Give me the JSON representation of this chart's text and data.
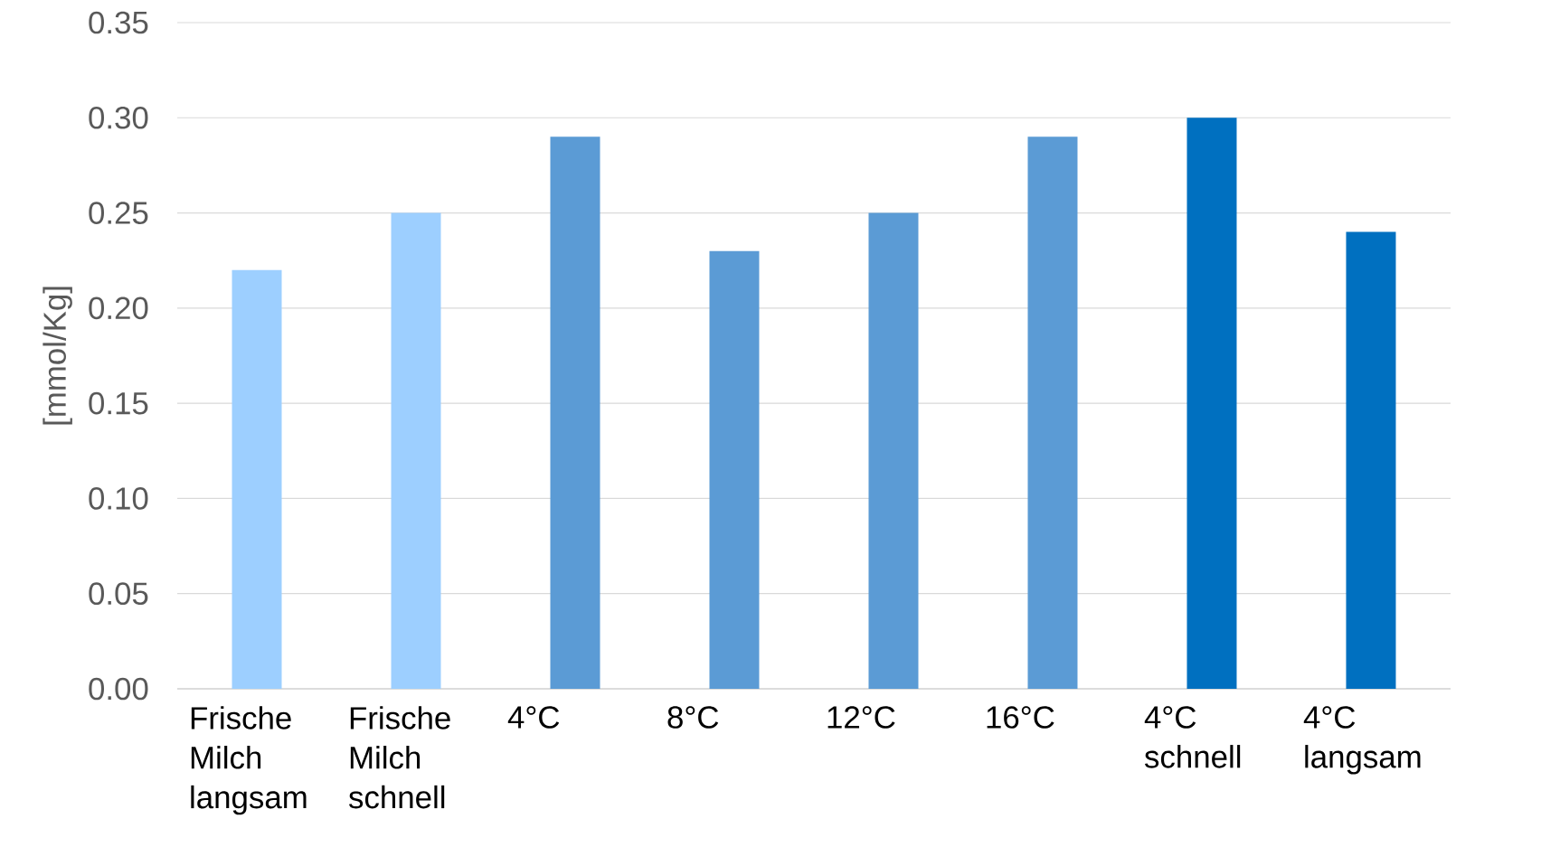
{
  "chart_data": {
    "type": "bar",
    "ylabel": "[mmol/Kg]",
    "categories": [
      "Frische Milch langsam",
      "Frische Milch schnell",
      "4°C",
      "8°C",
      "12°C",
      "16°C",
      "4°C schnell",
      "4°C langsam"
    ],
    "values": [
      0.22,
      0.25,
      0.29,
      0.23,
      0.25,
      0.29,
      0.3,
      0.24
    ],
    "colors": [
      "#9dcfff",
      "#9dcfff",
      "#5b9bd5",
      "#5b9bd5",
      "#5b9bd5",
      "#5b9bd5",
      "#0070c0",
      "#0070c0"
    ],
    "ylim": [
      0,
      0.35
    ],
    "yticks": [
      {
        "value": 0,
        "label": "0.00"
      },
      {
        "value": 0.05,
        "label": "0.05"
      },
      {
        "value": 0.1,
        "label": "0.10"
      },
      {
        "value": 0.15,
        "label": "0.15"
      },
      {
        "value": 0.2,
        "label": "0.20"
      },
      {
        "value": 0.25,
        "label": "0.25"
      },
      {
        "value": 0.3,
        "label": "0.30"
      },
      {
        "value": 0.35,
        "label": "0.35"
      }
    ],
    "grid": "y"
  }
}
